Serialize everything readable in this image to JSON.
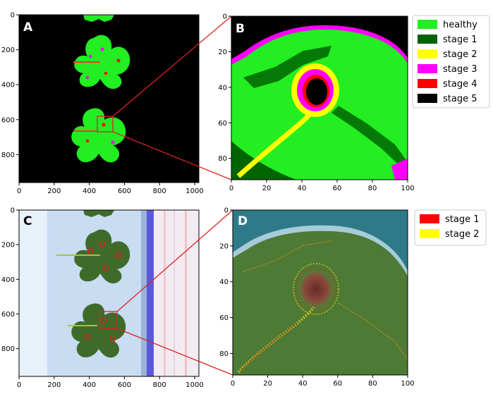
{
  "panels": {
    "A": {
      "letter": "A",
      "xticks": [
        "0",
        "200",
        "400",
        "600",
        "800",
        "1000"
      ],
      "yticks": [
        "0",
        "200",
        "400",
        "600",
        "800"
      ]
    },
    "B": {
      "letter": "B",
      "xticks": [
        "0",
        "20",
        "40",
        "60",
        "80",
        "100"
      ],
      "yticks": [
        "0",
        "20",
        "40",
        "60",
        "80"
      ]
    },
    "C": {
      "letter": "C",
      "xticks": [
        "0",
        "200",
        "400",
        "600",
        "800",
        "1000"
      ],
      "yticks": [
        "0",
        "200",
        "400",
        "600",
        "800"
      ]
    },
    "D": {
      "letter": "D",
      "xticks": [
        "0",
        "20",
        "40",
        "60",
        "80",
        "100"
      ],
      "yticks": [
        "0",
        "20",
        "40",
        "60",
        "80"
      ]
    }
  },
  "legend_top": [
    {
      "label": "healthy",
      "color": "#22ee22"
    },
    {
      "label": "stage 1",
      "color": "#006400"
    },
    {
      "label": "stage 2",
      "color": "#ffff00"
    },
    {
      "label": "stage 3",
      "color": "#ff00ff"
    },
    {
      "label": "stage 4",
      "color": "#ff0000"
    },
    {
      "label": "stage 5",
      "color": "#000000"
    }
  ],
  "legend_bottom": [
    {
      "label": "stage 1",
      "color": "#ff0000"
    },
    {
      "label": "stage 2",
      "color": "#ffff00"
    }
  ],
  "colors": {
    "zoom_line": "#dd2222",
    "leaf_green": "#22ee22",
    "leaf_dark": "#3f6b2a",
    "background_blue": "#c8dcf2"
  }
}
